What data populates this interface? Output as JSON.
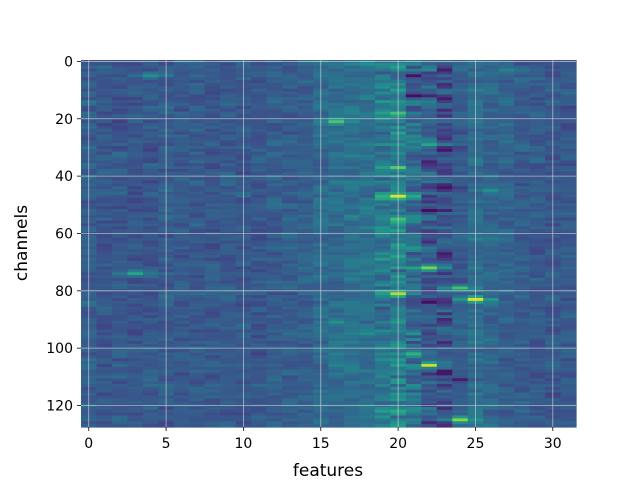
{
  "chart_data": {
    "type": "heatmap",
    "title": "",
    "xlabel": "features",
    "ylabel": "channels",
    "n_cols": 32,
    "n_rows": 128,
    "xlim": [
      -0.5,
      31.5
    ],
    "ylim": [
      127.5,
      -0.5
    ],
    "y_inverted": true,
    "x_ticks": [
      0,
      5,
      10,
      15,
      20,
      25,
      30
    ],
    "y_ticks": [
      0,
      20,
      40,
      60,
      80,
      100,
      120
    ],
    "grid": true,
    "colormap": "viridis",
    "value_range": [
      0,
      1
    ],
    "column_profile": [
      0.3,
      0.28,
      0.28,
      0.27,
      0.28,
      0.29,
      0.28,
      0.28,
      0.28,
      0.29,
      0.28,
      0.27,
      0.29,
      0.3,
      0.32,
      0.34,
      0.36,
      0.37,
      0.37,
      0.4,
      0.42,
      0.34,
      0.28,
      0.24,
      0.3,
      0.36,
      0.33,
      0.31,
      0.29,
      0.28,
      0.28,
      0.28
    ],
    "hotspots": [
      {
        "col": 20,
        "row": 47,
        "value": 0.95
      },
      {
        "col": 20,
        "row": 81,
        "value": 0.88
      },
      {
        "col": 25,
        "row": 83,
        "value": 0.95
      },
      {
        "col": 22,
        "row": 106,
        "value": 0.92
      },
      {
        "col": 24,
        "row": 125,
        "value": 0.82
      },
      {
        "col": 22,
        "row": 72,
        "value": 0.8
      },
      {
        "col": 16,
        "row": 21,
        "value": 0.72
      },
      {
        "col": 20,
        "row": 37,
        "value": 0.75
      },
      {
        "col": 20,
        "row": 55,
        "value": 0.7
      },
      {
        "col": 20,
        "row": 18,
        "value": 0.7
      },
      {
        "col": 24,
        "row": 79,
        "value": 0.7
      },
      {
        "col": 21,
        "row": 102,
        "value": 0.65
      },
      {
        "col": 22,
        "row": 29,
        "value": 0.6
      },
      {
        "col": 20,
        "row": 122,
        "value": 0.62
      },
      {
        "col": 3,
        "row": 74,
        "value": 0.6
      },
      {
        "col": 19,
        "row": 69,
        "value": 0.55
      },
      {
        "col": 4,
        "row": 5,
        "value": 0.5
      },
      {
        "col": 16,
        "row": 91,
        "value": 0.5
      },
      {
        "col": 27,
        "row": 3,
        "value": 0.45
      },
      {
        "col": 26,
        "row": 45,
        "value": 0.5
      },
      {
        "col": 18,
        "row": 1,
        "value": 0.5
      },
      {
        "col": 25,
        "row": 62,
        "value": 0.45
      },
      {
        "col": 17,
        "row": 33,
        "value": 0.45
      },
      {
        "col": 19,
        "row": 9,
        "value": 0.5
      },
      {
        "col": 18,
        "row": 95,
        "value": 0.48
      },
      {
        "col": 21,
        "row": 65,
        "value": 0.52
      }
    ],
    "coldspots": [
      {
        "col": 21,
        "row": 12,
        "value": 0.04
      },
      {
        "col": 22,
        "row": 52,
        "value": 0.03
      },
      {
        "col": 22,
        "row": 84,
        "value": 0.04
      },
      {
        "col": 23,
        "row": 31,
        "value": 0.06
      },
      {
        "col": 23,
        "row": 44,
        "value": 0.06
      },
      {
        "col": 24,
        "row": 111,
        "value": 0.08
      },
      {
        "col": 21,
        "row": 5,
        "value": 0.05
      }
    ]
  }
}
